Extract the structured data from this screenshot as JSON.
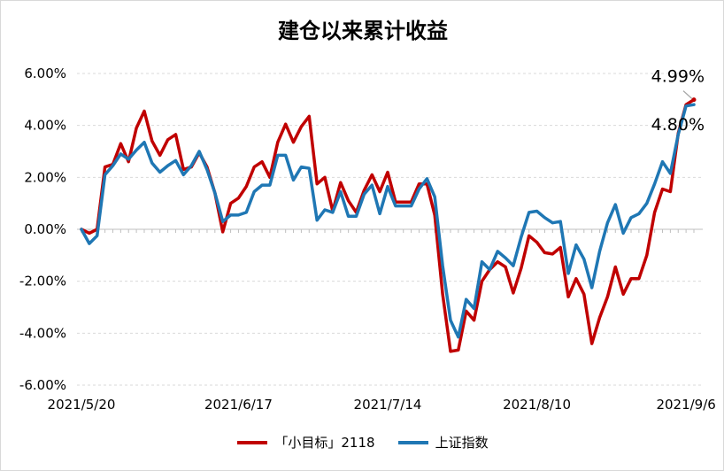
{
  "chart_data": {
    "type": "line",
    "title": "建仓以来累计收益",
    "y_ticks": [
      "6.00%",
      "4.00%",
      "2.00%",
      "0.00%",
      "-2.00%",
      "-4.00%",
      "-6.00%"
    ],
    "ylim": [
      -6,
      6
    ],
    "x_tick_labels": [
      "2021/5/20",
      "2021/6/17",
      "2021/7/14",
      "2021/8/10",
      "2021/9/6"
    ],
    "x_tick_index": [
      0,
      20,
      39,
      58,
      77
    ],
    "grid": "horizontal dashed",
    "legend_position": "bottom",
    "annotations": [
      {
        "text": "4.99%",
        "series": 0
      },
      {
        "text": "4.80%",
        "series": 1
      }
    ],
    "series": [
      {
        "name": "「小目标」2118",
        "color": "#c00000",
        "values": [
          0.0,
          -0.15,
          0.0,
          2.4,
          2.5,
          3.3,
          2.6,
          3.9,
          4.55,
          3.4,
          2.85,
          3.45,
          3.65,
          2.3,
          2.4,
          2.95,
          2.4,
          1.4,
          -0.1,
          1.0,
          1.2,
          1.65,
          2.4,
          2.6,
          2.0,
          3.35,
          4.05,
          3.35,
          3.95,
          4.35,
          1.75,
          2.0,
          0.7,
          1.8,
          1.1,
          0.65,
          1.5,
          2.1,
          1.45,
          2.2,
          1.05,
          1.05,
          1.05,
          1.75,
          1.75,
          0.55,
          -2.5,
          -4.7,
          -4.65,
          -3.15,
          -3.5,
          -2.0,
          -1.55,
          -1.25,
          -1.45,
          -2.45,
          -1.5,
          -0.25,
          -0.5,
          -0.9,
          -0.95,
          -0.7,
          -2.6,
          -1.9,
          -2.5,
          -4.4,
          -3.4,
          -2.6,
          -1.45,
          -2.5,
          -1.9,
          -1.9,
          -1.0,
          0.65,
          1.55,
          1.45,
          3.7,
          4.8,
          4.99
        ]
      },
      {
        "name": "上证指数",
        "color": "#1f77b4",
        "values": [
          0.0,
          -0.55,
          -0.25,
          2.1,
          2.45,
          2.9,
          2.7,
          3.05,
          3.35,
          2.55,
          2.2,
          2.45,
          2.65,
          2.1,
          2.45,
          3.0,
          2.3,
          1.4,
          0.3,
          0.55,
          0.55,
          0.65,
          1.45,
          1.7,
          1.7,
          2.85,
          2.85,
          1.9,
          2.4,
          2.35,
          0.35,
          0.75,
          0.65,
          1.45,
          0.5,
          0.5,
          1.35,
          1.7,
          0.6,
          1.65,
          0.9,
          0.9,
          0.9,
          1.55,
          1.95,
          1.25,
          -1.4,
          -3.5,
          -4.15,
          -2.7,
          -3.05,
          -1.25,
          -1.55,
          -0.85,
          -1.1,
          -1.4,
          -0.3,
          0.65,
          0.7,
          0.45,
          0.25,
          0.3,
          -1.7,
          -0.6,
          -1.15,
          -2.25,
          -0.85,
          0.25,
          0.95,
          -0.15,
          0.45,
          0.6,
          1.0,
          1.75,
          2.6,
          2.15,
          3.65,
          4.75,
          4.8
        ]
      }
    ]
  }
}
